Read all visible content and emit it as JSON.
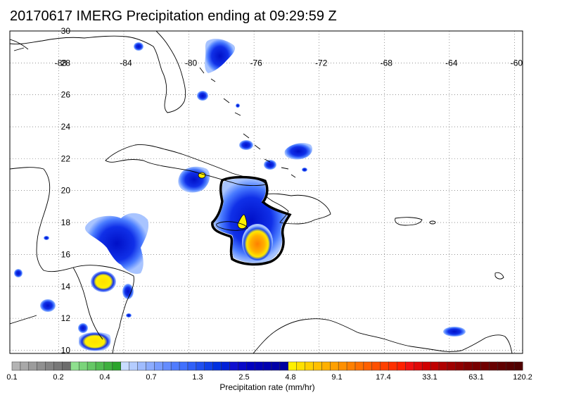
{
  "title": "20170617 IMERG Precipitation ending at 09:29:59 Z",
  "map": {
    "lon_labels": [
      "-88",
      "-84",
      "-80",
      "-76",
      "-72",
      "-68",
      "-64",
      "-60"
    ],
    "lat_labels": [
      "30",
      "28",
      "26",
      "24",
      "22",
      "20",
      "18",
      "16",
      "14",
      "12",
      "10"
    ],
    "lon_values": [
      -88,
      -84,
      -80,
      -76,
      -72,
      -68,
      -64,
      -60
    ],
    "lat_values": [
      30,
      28,
      26,
      24,
      22,
      20,
      18,
      16,
      14,
      12,
      10
    ],
    "lon_range": [
      -91,
      -59.5
    ],
    "lat_range": [
      9.8,
      30
    ],
    "grid": "dotted",
    "coastline_color": "#000000",
    "highlight_outline": "thick black contour around storm system south of Cuba"
  },
  "colorbar": {
    "title": "Precipitation rate (mm/hr)",
    "labels": [
      "0.1",
      "0.2",
      "0.4",
      "0.7",
      "1.3",
      "2.5",
      "4.8",
      "9.1",
      "17.4",
      "33.1",
      "63.1",
      "120.2"
    ],
    "colors": [
      "#b4b4b4",
      "#a8a8a8",
      "#9c9c9c",
      "#909090",
      "#848484",
      "#787878",
      "#6c6c6c",
      "#8ee08e",
      "#7ad47a",
      "#66c866",
      "#52bc52",
      "#3eb03e",
      "#2aa42a",
      "#c8dcff",
      "#b4ccff",
      "#a0bcff",
      "#8cacff",
      "#789cff",
      "#648cff",
      "#507cff",
      "#4070ff",
      "#3060f8",
      "#2050f0",
      "#1040e8",
      "#0030e0",
      "#0020d8",
      "#1010d0",
      "#0808c8",
      "#0000c0",
      "#0000b8",
      "#0000b0",
      "#0000a8",
      "#0000a0",
      "#fff000",
      "#ffe000",
      "#ffd000",
      "#ffc000",
      "#ffb000",
      "#ffa000",
      "#ff9000",
      "#ff8000",
      "#ff7000",
      "#ff6000",
      "#ff5000",
      "#ff4000",
      "#ff3000",
      "#ff2000",
      "#f01010",
      "#e00808",
      "#d00000",
      "#c00000",
      "#b00000",
      "#a00000",
      "#900000",
      "#800000",
      "#780000",
      "#700000",
      "#680000",
      "#600000",
      "#580000",
      "#500000"
    ]
  }
}
